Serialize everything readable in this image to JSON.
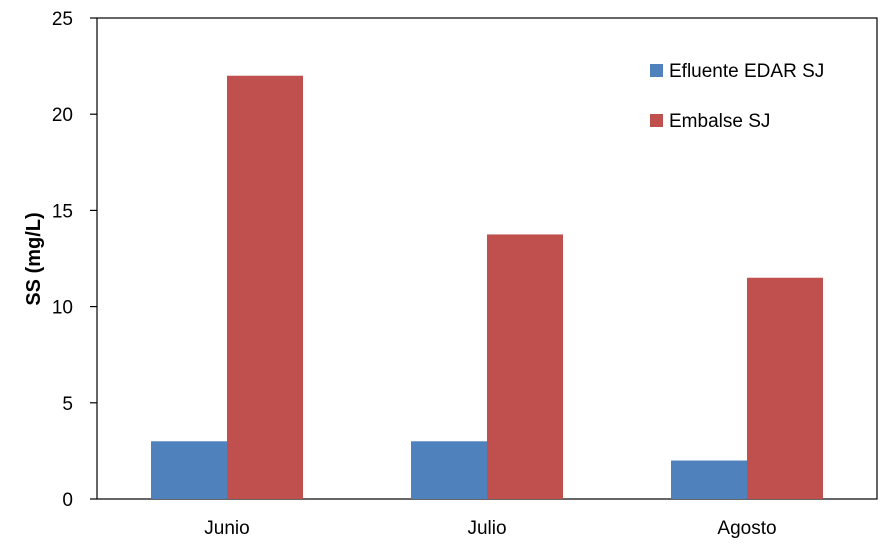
{
  "chart_data": {
    "type": "bar",
    "title": "",
    "xlabel": "",
    "ylabel": "SS (mg/L)",
    "categories": [
      "Junio",
      "Julio",
      "Agosto"
    ],
    "series": [
      {
        "name": "Efluente EDAR SJ",
        "color": "#4F81BD",
        "values": [
          3,
          3,
          2
        ]
      },
      {
        "name": "Embalse SJ",
        "color": "#C0504D",
        "values": [
          22,
          13.75,
          11.5
        ]
      }
    ],
    "ylim": [
      0,
      25
    ],
    "yticks": [
      0,
      5,
      10,
      15,
      20,
      25
    ],
    "grid": false,
    "legend_position": "top-right"
  }
}
